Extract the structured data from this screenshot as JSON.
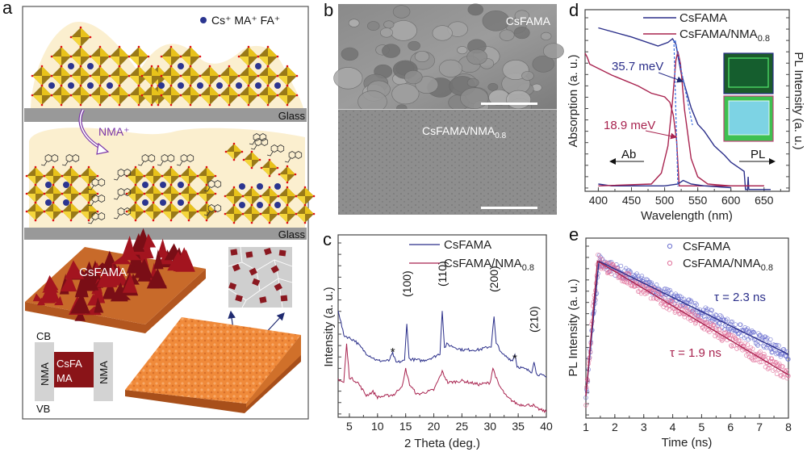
{
  "panel_labels": {
    "a": "a",
    "b": "b",
    "c": "c",
    "d": "d",
    "e": "e"
  },
  "schematic": {
    "legend": "Cs⁺  MA⁺  FA⁺",
    "glass_label": "Glass",
    "nma_label": "NMA⁺",
    "film_label": "CsFAMA",
    "band": {
      "cb": "CB",
      "vb": "VB",
      "left": "NMA",
      "right": "NMA",
      "center_line1": "CsFA",
      "center_line2": "MA"
    },
    "colors": {
      "film_bg": "#fbefcf",
      "glass": "#999999",
      "octahedron": "#e8c21a",
      "cation": "#2b3590",
      "nma_arrow": "#7a35a8",
      "rough_film": "#a3141f",
      "smooth_film": "#f08a3a"
    }
  },
  "sem": {
    "top_label": "CsFAMA",
    "bottom_label": "CsFAMA/NMA",
    "bottom_label_sub": "0.8"
  },
  "chart_data": [
    {
      "id": "c",
      "type": "line",
      "xlabel": "2 Theta (deg.)",
      "ylabel": "Intensity (a. u.)",
      "xlim": [
        3,
        40
      ],
      "ylim": [
        0,
        100
      ],
      "xticks": [
        5,
        10,
        15,
        20,
        25,
        30,
        35,
        40
      ],
      "legend": "top-right",
      "annotations": [
        {
          "text": "(100)",
          "x": 15.2
        },
        {
          "text": "(110)",
          "x": 21.5
        },
        {
          "text": "(200)",
          "x": 30.7
        },
        {
          "text": "(210)",
          "x": 37.8
        },
        {
          "text": "*",
          "x": 12.7
        },
        {
          "text": "*",
          "x": 34.4
        }
      ],
      "series": [
        {
          "name": "CsFAMA",
          "color": "#2b2f8a",
          "points": [
            [
              3,
              59
            ],
            [
              4,
              45
            ],
            [
              6,
              42
            ],
            [
              8,
              35
            ],
            [
              10,
              31
            ],
            [
              12,
              31
            ],
            [
              12.7,
              35
            ],
            [
              13.3,
              30
            ],
            [
              14.8,
              31
            ],
            [
              15.2,
              52
            ],
            [
              15.6,
              32
            ],
            [
              18,
              31
            ],
            [
              20,
              33
            ],
            [
              21.1,
              35
            ],
            [
              21.5,
              59
            ],
            [
              21.9,
              38
            ],
            [
              22.3,
              40
            ],
            [
              25,
              37
            ],
            [
              28,
              37
            ],
            [
              30.2,
              39
            ],
            [
              30.7,
              55
            ],
            [
              31.1,
              40
            ],
            [
              31.5,
              39
            ],
            [
              32,
              35
            ],
            [
              34,
              31
            ],
            [
              34.4,
              35
            ],
            [
              34.8,
              28
            ],
            [
              37.4,
              25
            ],
            [
              37.8,
              31
            ],
            [
              38.2,
              24
            ],
            [
              40,
              22
            ]
          ]
        },
        {
          "name": "CsFAMA/NMA0.8",
          "color": "#a8234f",
          "points": [
            [
              3,
              21
            ],
            [
              4,
              19
            ],
            [
              4.5,
              40
            ],
            [
              5,
              22
            ],
            [
              6.5,
              19
            ],
            [
              8,
              12
            ],
            [
              9.2,
              14
            ],
            [
              10,
              11
            ],
            [
              13,
              12.5
            ],
            [
              14.5,
              18
            ],
            [
              15,
              26.5
            ],
            [
              15.7,
              18
            ],
            [
              17,
              12.5
            ],
            [
              20,
              15
            ],
            [
              21.5,
              25
            ],
            [
              22.5,
              19
            ],
            [
              25,
              20
            ],
            [
              28,
              18
            ],
            [
              30,
              19
            ],
            [
              30.5,
              27
            ],
            [
              31.5,
              18
            ],
            [
              33,
              11
            ],
            [
              35,
              7
            ],
            [
              37.7,
              6.6
            ],
            [
              38.2,
              5
            ],
            [
              40,
              3
            ]
          ]
        }
      ]
    },
    {
      "id": "d",
      "type": "line",
      "xlabel": "Wavelength (nm)",
      "ylabel": "Absorption (a. u.)",
      "ylabel_right": "PL Intensity (a. u.)",
      "xlim": [
        380,
        688
      ],
      "ylim": [
        0,
        100
      ],
      "xticks": [
        400,
        450,
        500,
        550,
        600,
        650
      ],
      "legend": "top",
      "annotations": [
        {
          "text": "35.7 meV",
          "color": "#2b2f8a"
        },
        {
          "text": "18.9 meV",
          "color": "#a8234f"
        },
        {
          "text": "Ab"
        },
        {
          "text": "PL"
        }
      ],
      "series": [
        {
          "name": "CsFAMA",
          "color": "#2b2f8a",
          "kind": "absorption",
          "points": [
            [
              400,
              90
            ],
            [
              450,
              85
            ],
            [
              490,
              80
            ],
            [
              505,
              82
            ],
            [
              512,
              84
            ],
            [
              517,
              81
            ],
            [
              525,
              65
            ],
            [
              540,
              46
            ],
            [
              550,
              37
            ],
            [
              560,
              33
            ],
            [
              575,
              25
            ],
            [
              590,
              20
            ],
            [
              600,
              16
            ],
            [
              612,
              13
            ],
            [
              620,
              11
            ],
            [
              622,
              1
            ],
            [
              625,
              1
            ],
            [
              626,
              8
            ],
            [
              627,
              1
            ],
            [
              660,
              1
            ]
          ]
        },
        {
          "name": "CsFAMA/NMA0.8",
          "color": "#a8234f",
          "kind": "absorption",
          "points": [
            [
              380,
              76
            ],
            [
              383,
              74
            ],
            [
              387,
              70
            ],
            [
              420,
              64
            ],
            [
              460,
              58
            ],
            [
              480,
              54
            ],
            [
              500,
              52
            ],
            [
              508,
              49
            ],
            [
              513,
              42
            ],
            [
              518,
              28
            ],
            [
              522,
              3
            ],
            [
              540,
              3
            ],
            [
              650,
              3
            ]
          ]
        },
        {
          "name": "CsFAMA",
          "color": "#2b2f8a",
          "kind": "PL",
          "points": [
            [
              400,
              4
            ],
            [
              420,
              3
            ],
            [
              500,
              3
            ],
            [
              520,
              4
            ],
            [
              528,
              6
            ],
            [
              540,
              4
            ],
            [
              560,
              3
            ],
            [
              600,
              2
            ]
          ]
        },
        {
          "name": "CsFAMA/NMA0.8",
          "color": "#a8234f",
          "kind": "PL",
          "points": [
            [
              400,
              3
            ],
            [
              480,
              4
            ],
            [
              495,
              10
            ],
            [
              505,
              25
            ],
            [
              512,
              50
            ],
            [
              517,
              72
            ],
            [
              520,
              77
            ],
            [
              524,
              70
            ],
            [
              530,
              45
            ],
            [
              540,
              18
            ],
            [
              550,
              8
            ],
            [
              565,
              4
            ],
            [
              600,
              3
            ],
            [
              650,
              3
            ]
          ]
        }
      ],
      "inset_photos": [
        {
          "border": "#2b2f8a",
          "tint": "#1f7a3a"
        },
        {
          "border": "#c0467a",
          "tint": "#6fd0e0"
        }
      ]
    },
    {
      "id": "e",
      "type": "scatter",
      "xlabel": "Time (ns)",
      "ylabel": "PL Intensity (a. u.)",
      "xlim": [
        1,
        8
      ],
      "ylim": [
        0.0105,
        1.95
      ],
      "yscale": "log",
      "xticks": [
        1,
        2,
        3,
        4,
        5,
        6,
        7,
        8
      ],
      "legend": "top-right",
      "series": [
        {
          "name": "CsFAMA",
          "color": "#6a6fcf",
          "fit_color": "#2b2f8a",
          "tau_ns": 2.3,
          "tau_label": "τ = 2.3 ns",
          "rise_start_ns": 1.0,
          "peak_ns": 1.45
        },
        {
          "name": "CsFAMA/NMA0.8",
          "color": "#e0709a",
          "fit_color": "#a8234f",
          "tau_ns": 1.9,
          "tau_label": "τ = 1.9 ns",
          "rise_start_ns": 1.0,
          "peak_ns": 1.4
        }
      ]
    }
  ],
  "legend_text": {
    "s1": "CsFAMA",
    "s2": "CsFAMA/NMA",
    "s2_sub": "0.8"
  }
}
